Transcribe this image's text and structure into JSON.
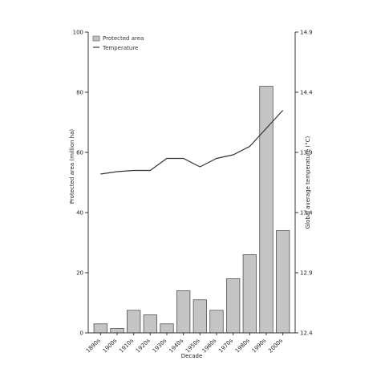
{
  "chart_data": {
    "type": "bar",
    "title": "",
    "xlabel": "Decade",
    "ylabel_left": "Protected area (million ha)",
    "ylabel_right": "Global average temperature (°C)",
    "categories": [
      "1890s",
      "1900s",
      "1910s",
      "1920s",
      "1930s",
      "1940s",
      "1950s",
      "1960s",
      "1970s",
      "1980s",
      "1990s",
      "2000s"
    ],
    "series": [
      {
        "name": "Protected area",
        "type": "bar",
        "axis": "left",
        "values": [
          3,
          1.5,
          7.5,
          6,
          3,
          14,
          11,
          7.5,
          18,
          26,
          82,
          34
        ]
      },
      {
        "name": "Temperature",
        "type": "line",
        "axis": "right",
        "values": [
          13.72,
          13.74,
          13.75,
          13.75,
          13.85,
          13.85,
          13.78,
          13.85,
          13.88,
          13.95,
          14.1,
          14.25
        ]
      }
    ],
    "ylim_left": [
      0,
      100
    ],
    "yticks_left": [
      "0",
      "20",
      "40",
      "60",
      "80",
      "100"
    ],
    "ylim_right": [
      12.4,
      14.9
    ],
    "yticks_right": [
      "12.4",
      "12.9",
      "13.4",
      "13.9",
      "14.4",
      "14.9"
    ],
    "legend": {
      "placement": "top-left",
      "entries": [
        "Protected area",
        "Temperature"
      ]
    },
    "grid": false,
    "colors": {
      "bar_fill": "#c4c4c4",
      "bar_edge": "#555555",
      "line": "#333333",
      "axis": "#333333"
    }
  }
}
